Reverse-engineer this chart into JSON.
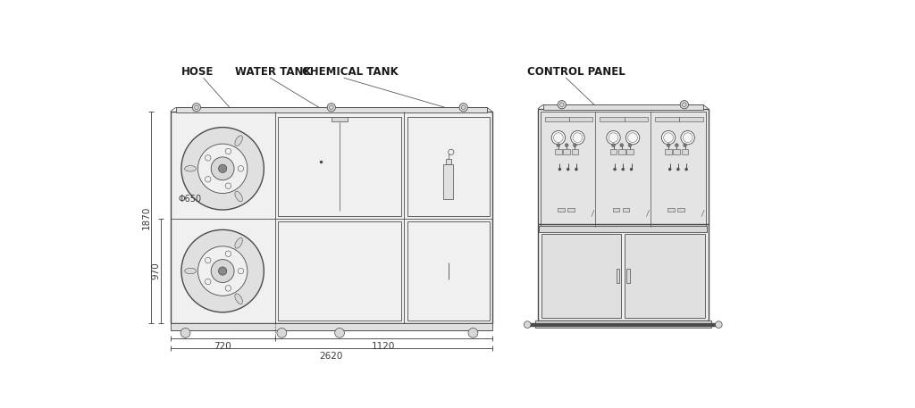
{
  "bg_color": "#ffffff",
  "lc": "#4a4a4a",
  "lc_thin": "#6a6a6a",
  "fill_body": "#f0f0f0",
  "fill_panel": "#e8e8e8",
  "fill_dark": "#d8d8d8",
  "fill_mid": "#e0e0e0",
  "dim_color": "#3a3a3a",
  "labels": {
    "hose": "HOSE",
    "water_tank": "WATER TANK",
    "chemical_tank": "CHEMICAL TANK",
    "control_panel": "CONTROL PANEL"
  },
  "dims": {
    "720": "720",
    "1120": "1120",
    "2620": "2620",
    "1870": "1870",
    "970": "970",
    "phi650": "Φ650"
  },
  "label_fontsize": 8.5,
  "dim_fontsize": 7.5
}
